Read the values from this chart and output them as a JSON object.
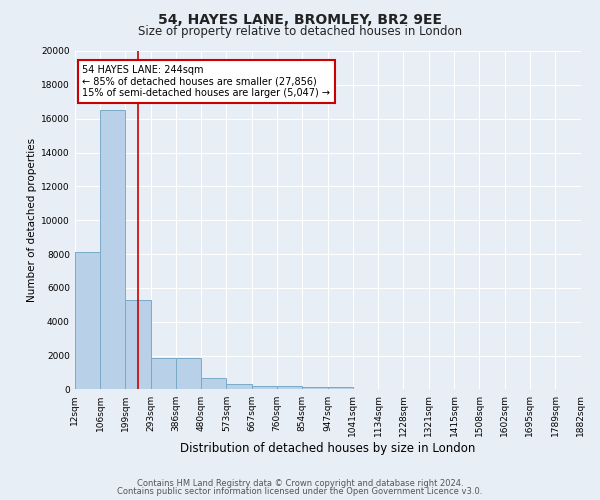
{
  "title": "54, HAYES LANE, BROMLEY, BR2 9EE",
  "subtitle": "Size of property relative to detached houses in London",
  "xlabel": "Distribution of detached houses by size in London",
  "ylabel": "Number of detached properties",
  "footnote1": "Contains HM Land Registry data © Crown copyright and database right 2024.",
  "footnote2": "Contains public sector information licensed under the Open Government Licence v3.0.",
  "annotation_title": "54 HAYES LANE: 244sqm",
  "annotation_line1": "← 85% of detached houses are smaller (27,856)",
  "annotation_line2": "15% of semi-detached houses are larger (5,047) →",
  "bar_values": [
    8100,
    16500,
    5300,
    1850,
    1850,
    700,
    300,
    220,
    200,
    150,
    150,
    0,
    0,
    0,
    0,
    0,
    0,
    0,
    0,
    0
  ],
  "categories": [
    "12sqm",
    "106sqm",
    "199sqm",
    "293sqm",
    "386sqm",
    "480sqm",
    "573sqm",
    "667sqm",
    "760sqm",
    "854sqm",
    "947sqm",
    "1041sqm",
    "1134sqm",
    "1228sqm",
    "1321sqm",
    "1415sqm",
    "1508sqm",
    "1602sqm",
    "1695sqm",
    "1789sqm",
    "1882sqm"
  ],
  "bar_color": "#b8d0e8",
  "bar_edge_color": "#7aaac8",
  "red_line_index": 2.5,
  "ylim": [
    0,
    20000
  ],
  "yticks": [
    0,
    2000,
    4000,
    6000,
    8000,
    10000,
    12000,
    14000,
    16000,
    18000,
    20000
  ],
  "bg_color": "#e8eef5",
  "plot_bg_color": "#e8eef5",
  "grid_color": "#ffffff",
  "annotation_box_color": "#ffffff",
  "annotation_border_color": "#cc0000",
  "red_line_color": "#cc0000",
  "title_fontsize": 10,
  "subtitle_fontsize": 8.5,
  "ylabel_fontsize": 7.5,
  "xlabel_fontsize": 8.5,
  "tick_fontsize": 6.5,
  "annotation_fontsize": 7,
  "footnote_fontsize": 6
}
